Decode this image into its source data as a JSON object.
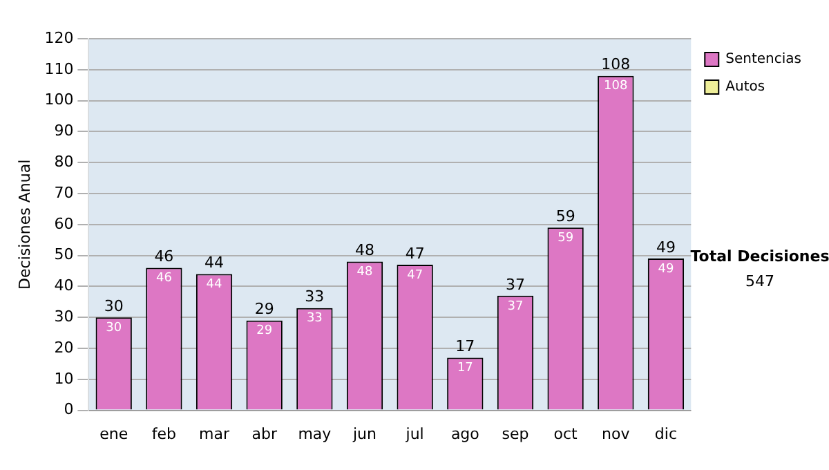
{
  "chart_data": {
    "type": "bar",
    "ylabel": "Decisiones Anual",
    "categories": [
      "ene",
      "feb",
      "mar",
      "abr",
      "may",
      "jun",
      "jul",
      "ago",
      "sep",
      "oct",
      "nov",
      "dic"
    ],
    "series": [
      {
        "name": "Sentencias",
        "color": "#dd77c4",
        "values": [
          30,
          46,
          44,
          29,
          33,
          48,
          47,
          17,
          37,
          59,
          108,
          49
        ],
        "value_labels": [
          "30",
          "46",
          "44",
          "29",
          "33",
          "48",
          "47",
          "17",
          "37",
          "59",
          "108",
          "49"
        ]
      },
      {
        "name": "Autos",
        "color": "#eeee99",
        "values": [
          0,
          0,
          0,
          0,
          0,
          0,
          0,
          0,
          0,
          0,
          0,
          0
        ]
      }
    ],
    "stacked": true,
    "totals": [
      "30",
      "46",
      "44",
      "29",
      "33",
      "48",
      "47",
      "17",
      "37",
      "59",
      "108",
      "49"
    ],
    "ylim": [
      0,
      120
    ],
    "yticks": [
      0,
      10,
      20,
      30,
      40,
      50,
      60,
      70,
      80,
      90,
      100,
      110,
      120
    ],
    "grid": "y",
    "legend": "right",
    "annotations": [
      "Total Decisiones",
      "547"
    ]
  }
}
